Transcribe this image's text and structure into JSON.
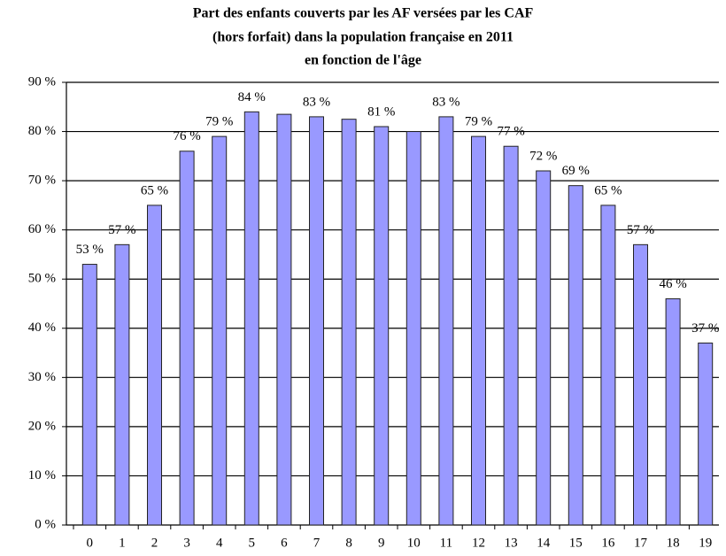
{
  "chart_data": {
    "type": "bar",
    "title": [
      "Part des enfants couverts par les AF versées par les CAF",
      "(hors forfait) dans la population française en 2011",
      "en fonction de l'âge"
    ],
    "categories": [
      "0",
      "1",
      "2",
      "3",
      "4",
      "5",
      "6",
      "7",
      "8",
      "9",
      "10",
      "11",
      "12",
      "13",
      "14",
      "15",
      "16",
      "17",
      "18",
      "19"
    ],
    "values": [
      53,
      57,
      65,
      76,
      79,
      84,
      83.5,
      83,
      82.5,
      81,
      80,
      83,
      79,
      77,
      72,
      69,
      65,
      57,
      46,
      37
    ],
    "value_labels": [
      "53 %",
      "57 %",
      "65 %",
      "76 %",
      "79 %",
      "84 %",
      null,
      "83 %",
      null,
      "81 %",
      null,
      "83 %",
      "79 %",
      "77 %",
      "72 %",
      "69 %",
      "65 %",
      "57 %",
      "46 %",
      "37 %"
    ],
    "color": "#9999ff",
    "ylim": [
      0,
      90
    ],
    "yticks": [
      {
        "value": 0,
        "label": "0 %"
      },
      {
        "value": 10,
        "label": "10 %"
      },
      {
        "value": 20,
        "label": "20 %"
      },
      {
        "value": 30,
        "label": "30 %"
      },
      {
        "value": 40,
        "label": "40 %"
      },
      {
        "value": 50,
        "label": "50 %"
      },
      {
        "value": 60,
        "label": "60 %"
      },
      {
        "value": 70,
        "label": "70 %"
      },
      {
        "value": 80,
        "label": "80 %"
      },
      {
        "value": 90,
        "label": "90 %"
      }
    ],
    "grid": true
  }
}
